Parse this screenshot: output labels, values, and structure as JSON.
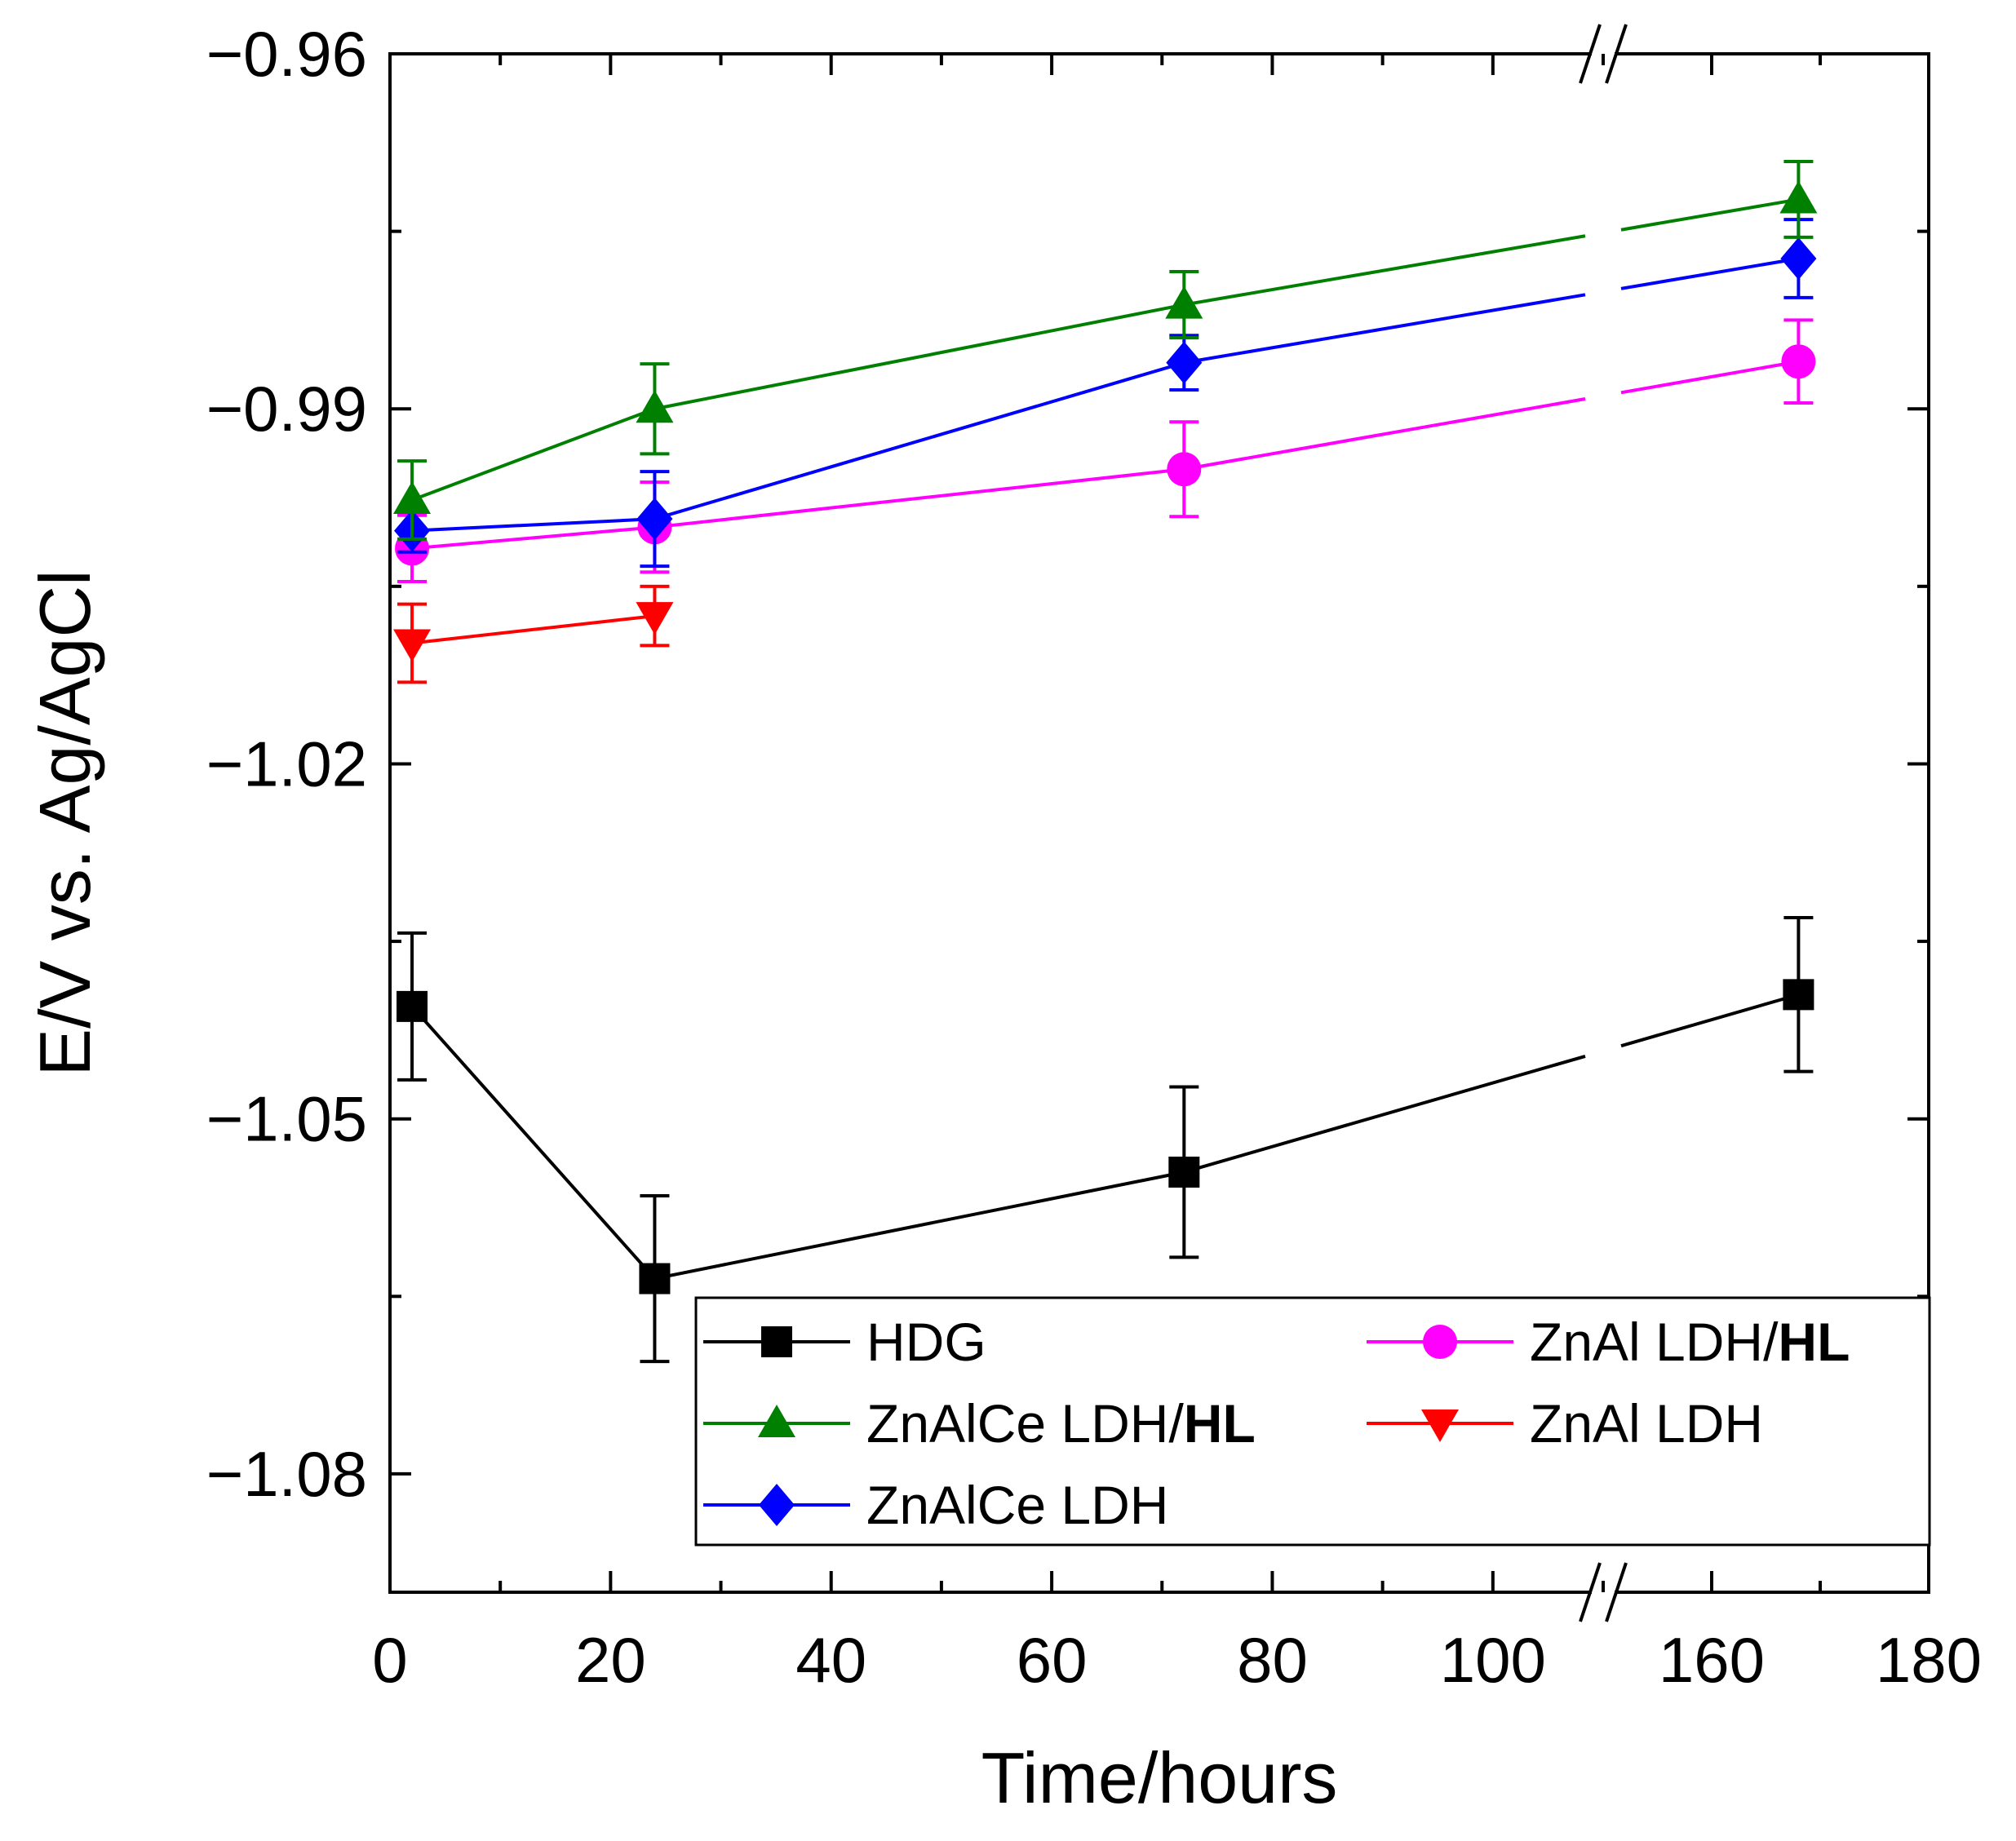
{
  "chart_data": {
    "type": "line",
    "xlabel": "Time/hours",
    "ylabel": "E/V vs. Ag/AgCl",
    "x_axis_note": "broken axis: 0-110 then 150-180",
    "x_ticks": [
      {
        "value": 0,
        "label": "0"
      },
      {
        "value": 20,
        "label": "20"
      },
      {
        "value": 40,
        "label": "40"
      },
      {
        "value": 60,
        "label": "60"
      },
      {
        "value": 80,
        "label": "80"
      },
      {
        "value": 100,
        "label": "100"
      },
      {
        "value": 160,
        "label": "160"
      },
      {
        "value": 180,
        "label": "180"
      }
    ],
    "y_ticks": [
      {
        "value": -0.96,
        "label": "−0.96"
      },
      {
        "value": -0.99,
        "label": "−0.99"
      },
      {
        "value": -1.02,
        "label": "−1.02"
      },
      {
        "value": -1.05,
        "label": "−1.05"
      },
      {
        "value": -1.08,
        "label": "−1.08"
      }
    ],
    "ylim": [
      -1.09,
      -0.96
    ],
    "series": [
      {
        "name": "HDG",
        "color": "#000000",
        "marker": "square",
        "x": [
          2,
          24,
          72,
          168
        ],
        "y": [
          -1.0405,
          -1.0635,
          -1.0545,
          -1.0395
        ],
        "err": [
          0.0062,
          0.007,
          0.0072,
          0.0065
        ]
      },
      {
        "name": "ZnAlCe LDH/",
        "name_bold": "HL",
        "color": "#008000",
        "marker": "triangle-up",
        "x": [
          2,
          24,
          72,
          168
        ],
        "y": [
          -0.9977,
          -0.99,
          -0.9812,
          -0.9723
        ],
        "err": [
          0.0033,
          0.0038,
          0.0028,
          0.0032
        ]
      },
      {
        "name": "ZnAlCe LDH",
        "color": "#0000ff",
        "marker": "diamond",
        "x": [
          2,
          24,
          72,
          168
        ],
        "y": [
          -1.0003,
          -0.9993,
          -0.9861,
          -0.9773
        ],
        "err": [
          0.0018,
          0.004,
          0.0023,
          0.0033
        ]
      },
      {
        "name": "ZnAl LDH/",
        "name_bold": "HL",
        "color": "#ff00ff",
        "marker": "circle",
        "x": [
          2,
          24,
          72,
          168
        ],
        "y": [
          -1.0018,
          -1.0,
          -0.9951,
          -0.986
        ],
        "err": [
          0.0028,
          0.0038,
          0.004,
          0.0035
        ]
      },
      {
        "name": "ZnAl LDH",
        "color": "#ff0000",
        "marker": "triangle-down",
        "x": [
          2,
          24
        ],
        "y": [
          -1.0098,
          -1.0075
        ],
        "err": [
          0.0033,
          0.0025
        ]
      }
    ],
    "legend_position": "bottom-right"
  }
}
